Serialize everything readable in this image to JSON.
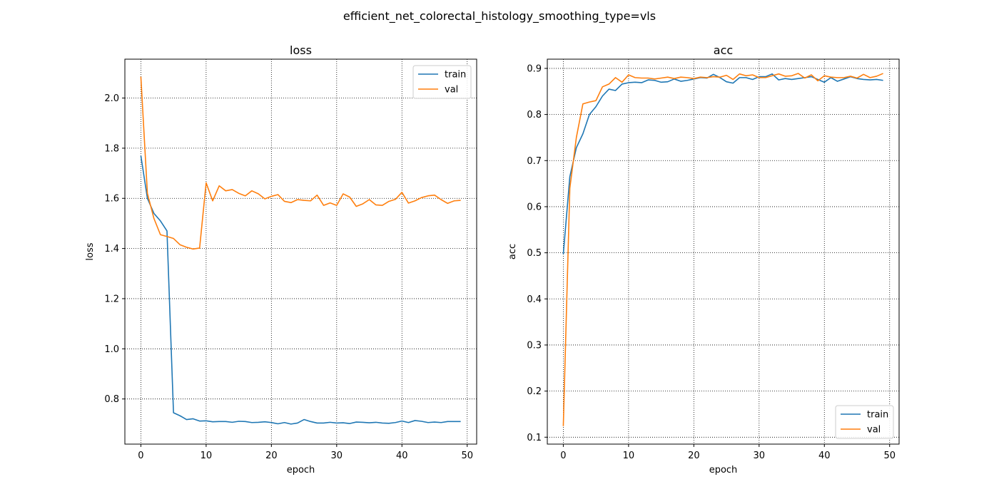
{
  "figure": {
    "suptitle": "efficient_net_colorectal_histology_smoothing_type=vls"
  },
  "colors": {
    "train": "#1f77b4",
    "val": "#ff7f0e",
    "grid": "#000000",
    "axes": "#000000"
  },
  "chart_data": [
    {
      "type": "line",
      "title": "loss",
      "xlabel": "epoch",
      "ylabel": "loss",
      "xlim": [
        -2.45,
        51.45
      ],
      "ylim": [
        0.62,
        2.155
      ],
      "xticks": [
        0,
        10,
        20,
        30,
        40,
        50
      ],
      "yticks": [
        0.8,
        1.0,
        1.2,
        1.4,
        1.6,
        1.8,
        2.0
      ],
      "ytick_labels": [
        "0.8",
        "1.0",
        "1.2",
        "1.4",
        "1.6",
        "1.8",
        "2.0"
      ],
      "grid": true,
      "legend_position": "upper right",
      "x": [
        0,
        1,
        2,
        3,
        4,
        5,
        6,
        7,
        8,
        9,
        10,
        11,
        12,
        13,
        14,
        15,
        16,
        17,
        18,
        19,
        20,
        21,
        22,
        23,
        24,
        25,
        26,
        27,
        28,
        29,
        30,
        31,
        32,
        33,
        34,
        35,
        36,
        37,
        38,
        39,
        40,
        41,
        42,
        43,
        44,
        45,
        46,
        47,
        48,
        49
      ],
      "series": [
        {
          "name": "train",
          "color_key": "train",
          "values": [
            1.77,
            1.6,
            1.54,
            1.51,
            1.47,
            0.745,
            0.733,
            0.718,
            0.721,
            0.712,
            0.713,
            0.709,
            0.71,
            0.71,
            0.707,
            0.711,
            0.71,
            0.706,
            0.707,
            0.709,
            0.706,
            0.701,
            0.706,
            0.7,
            0.704,
            0.718,
            0.71,
            0.704,
            0.704,
            0.707,
            0.704,
            0.705,
            0.702,
            0.708,
            0.707,
            0.705,
            0.707,
            0.704,
            0.703,
            0.706,
            0.712,
            0.706,
            0.714,
            0.711,
            0.706,
            0.708,
            0.706,
            0.71,
            0.71,
            0.71
          ]
        },
        {
          "name": "val",
          "color_key": "val",
          "values": [
            2.085,
            1.62,
            1.52,
            1.455,
            1.448,
            1.44,
            1.415,
            1.405,
            1.398,
            1.402,
            1.662,
            1.59,
            1.65,
            1.63,
            1.635,
            1.62,
            1.61,
            1.63,
            1.618,
            1.598,
            1.608,
            1.615,
            1.588,
            1.583,
            1.595,
            1.592,
            1.59,
            1.613,
            1.572,
            1.582,
            1.572,
            1.618,
            1.605,
            1.568,
            1.578,
            1.595,
            1.574,
            1.572,
            1.588,
            1.596,
            1.624,
            1.581,
            1.59,
            1.603,
            1.61,
            1.613,
            1.595,
            1.58,
            1.59,
            1.592
          ]
        }
      ]
    },
    {
      "type": "line",
      "title": "acc",
      "xlabel": "epoch",
      "ylabel": "acc",
      "xlim": [
        -2.45,
        51.45
      ],
      "ylim": [
        0.085,
        0.92
      ],
      "xticks": [
        0,
        10,
        20,
        30,
        40,
        50
      ],
      "yticks": [
        0.1,
        0.2,
        0.3,
        0.4,
        0.5,
        0.6,
        0.7,
        0.8,
        0.9
      ],
      "ytick_labels": [
        "0.1",
        "0.2",
        "0.3",
        "0.4",
        "0.5",
        "0.6",
        "0.7",
        "0.8",
        "0.9"
      ],
      "grid": true,
      "legend_position": "lower right",
      "x": [
        0,
        1,
        2,
        3,
        4,
        5,
        6,
        7,
        8,
        9,
        10,
        11,
        12,
        13,
        14,
        15,
        16,
        17,
        18,
        19,
        20,
        21,
        22,
        23,
        24,
        25,
        26,
        27,
        28,
        29,
        30,
        31,
        32,
        33,
        34,
        35,
        36,
        37,
        38,
        39,
        40,
        41,
        42,
        43,
        44,
        45,
        46,
        47,
        48,
        49
      ],
      "series": [
        {
          "name": "train",
          "color_key": "train",
          "values": [
            0.497,
            0.665,
            0.728,
            0.758,
            0.8,
            0.817,
            0.84,
            0.855,
            0.852,
            0.866,
            0.869,
            0.87,
            0.869,
            0.875,
            0.874,
            0.87,
            0.871,
            0.877,
            0.872,
            0.874,
            0.877,
            0.88,
            0.879,
            0.887,
            0.88,
            0.871,
            0.868,
            0.88,
            0.88,
            0.876,
            0.882,
            0.882,
            0.888,
            0.875,
            0.878,
            0.876,
            0.878,
            0.88,
            0.882,
            0.876,
            0.87,
            0.88,
            0.872,
            0.877,
            0.882,
            0.878,
            0.876,
            0.875,
            0.876,
            0.874
          ]
        },
        {
          "name": "val",
          "color_key": "val",
          "values": [
            0.124,
            0.64,
            0.75,
            0.823,
            0.827,
            0.83,
            0.86,
            0.866,
            0.88,
            0.87,
            0.886,
            0.88,
            0.879,
            0.879,
            0.877,
            0.879,
            0.881,
            0.878,
            0.881,
            0.88,
            0.878,
            0.881,
            0.88,
            0.882,
            0.881,
            0.885,
            0.876,
            0.888,
            0.884,
            0.886,
            0.88,
            0.88,
            0.884,
            0.888,
            0.883,
            0.884,
            0.889,
            0.879,
            0.886,
            0.873,
            0.884,
            0.881,
            0.88,
            0.88,
            0.883,
            0.879,
            0.887,
            0.88,
            0.883,
            0.889
          ]
        }
      ]
    }
  ]
}
